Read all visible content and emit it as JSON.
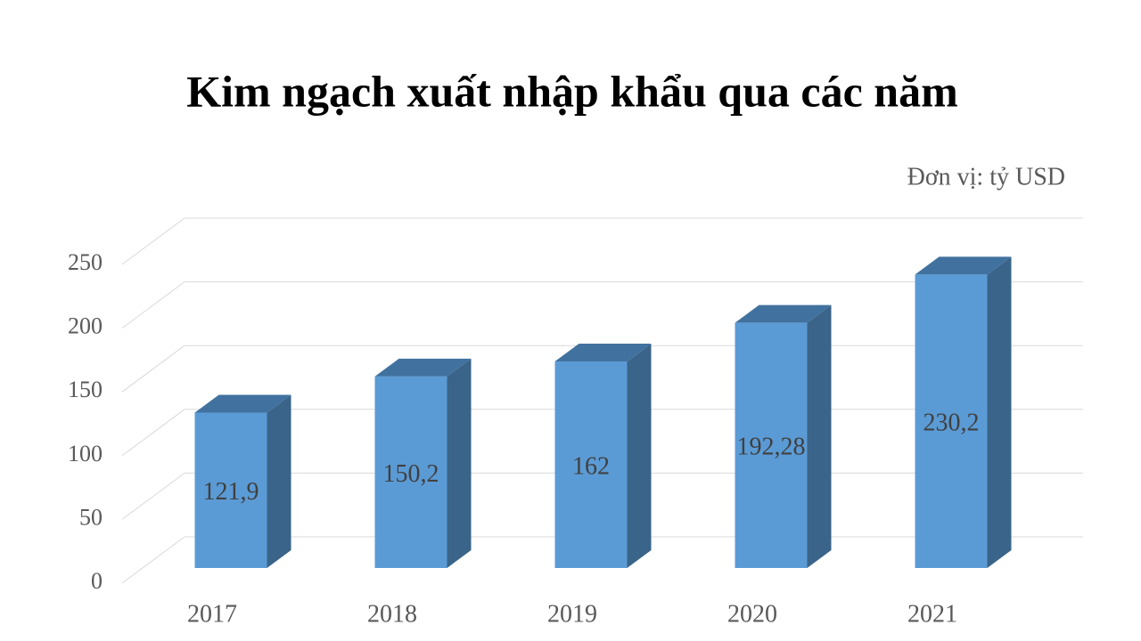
{
  "chart_data": {
    "type": "bar3d",
    "title": "Kim ngạch xuất nhập khẩu qua các năm",
    "unit": "Đơn vị: tỷ USD",
    "categories": [
      "2017",
      "2018",
      "2019",
      "2020",
      "2021"
    ],
    "values": [
      121.9,
      150.2,
      162,
      192.28,
      230.2
    ],
    "value_labels": [
      "121,9",
      "150,2",
      "162",
      "192,28",
      "230,2"
    ],
    "color": "#5b9bd5",
    "ylim": [
      0,
      250
    ],
    "yticks": [
      0,
      50,
      100,
      150,
      200,
      250
    ],
    "grid": true
  }
}
